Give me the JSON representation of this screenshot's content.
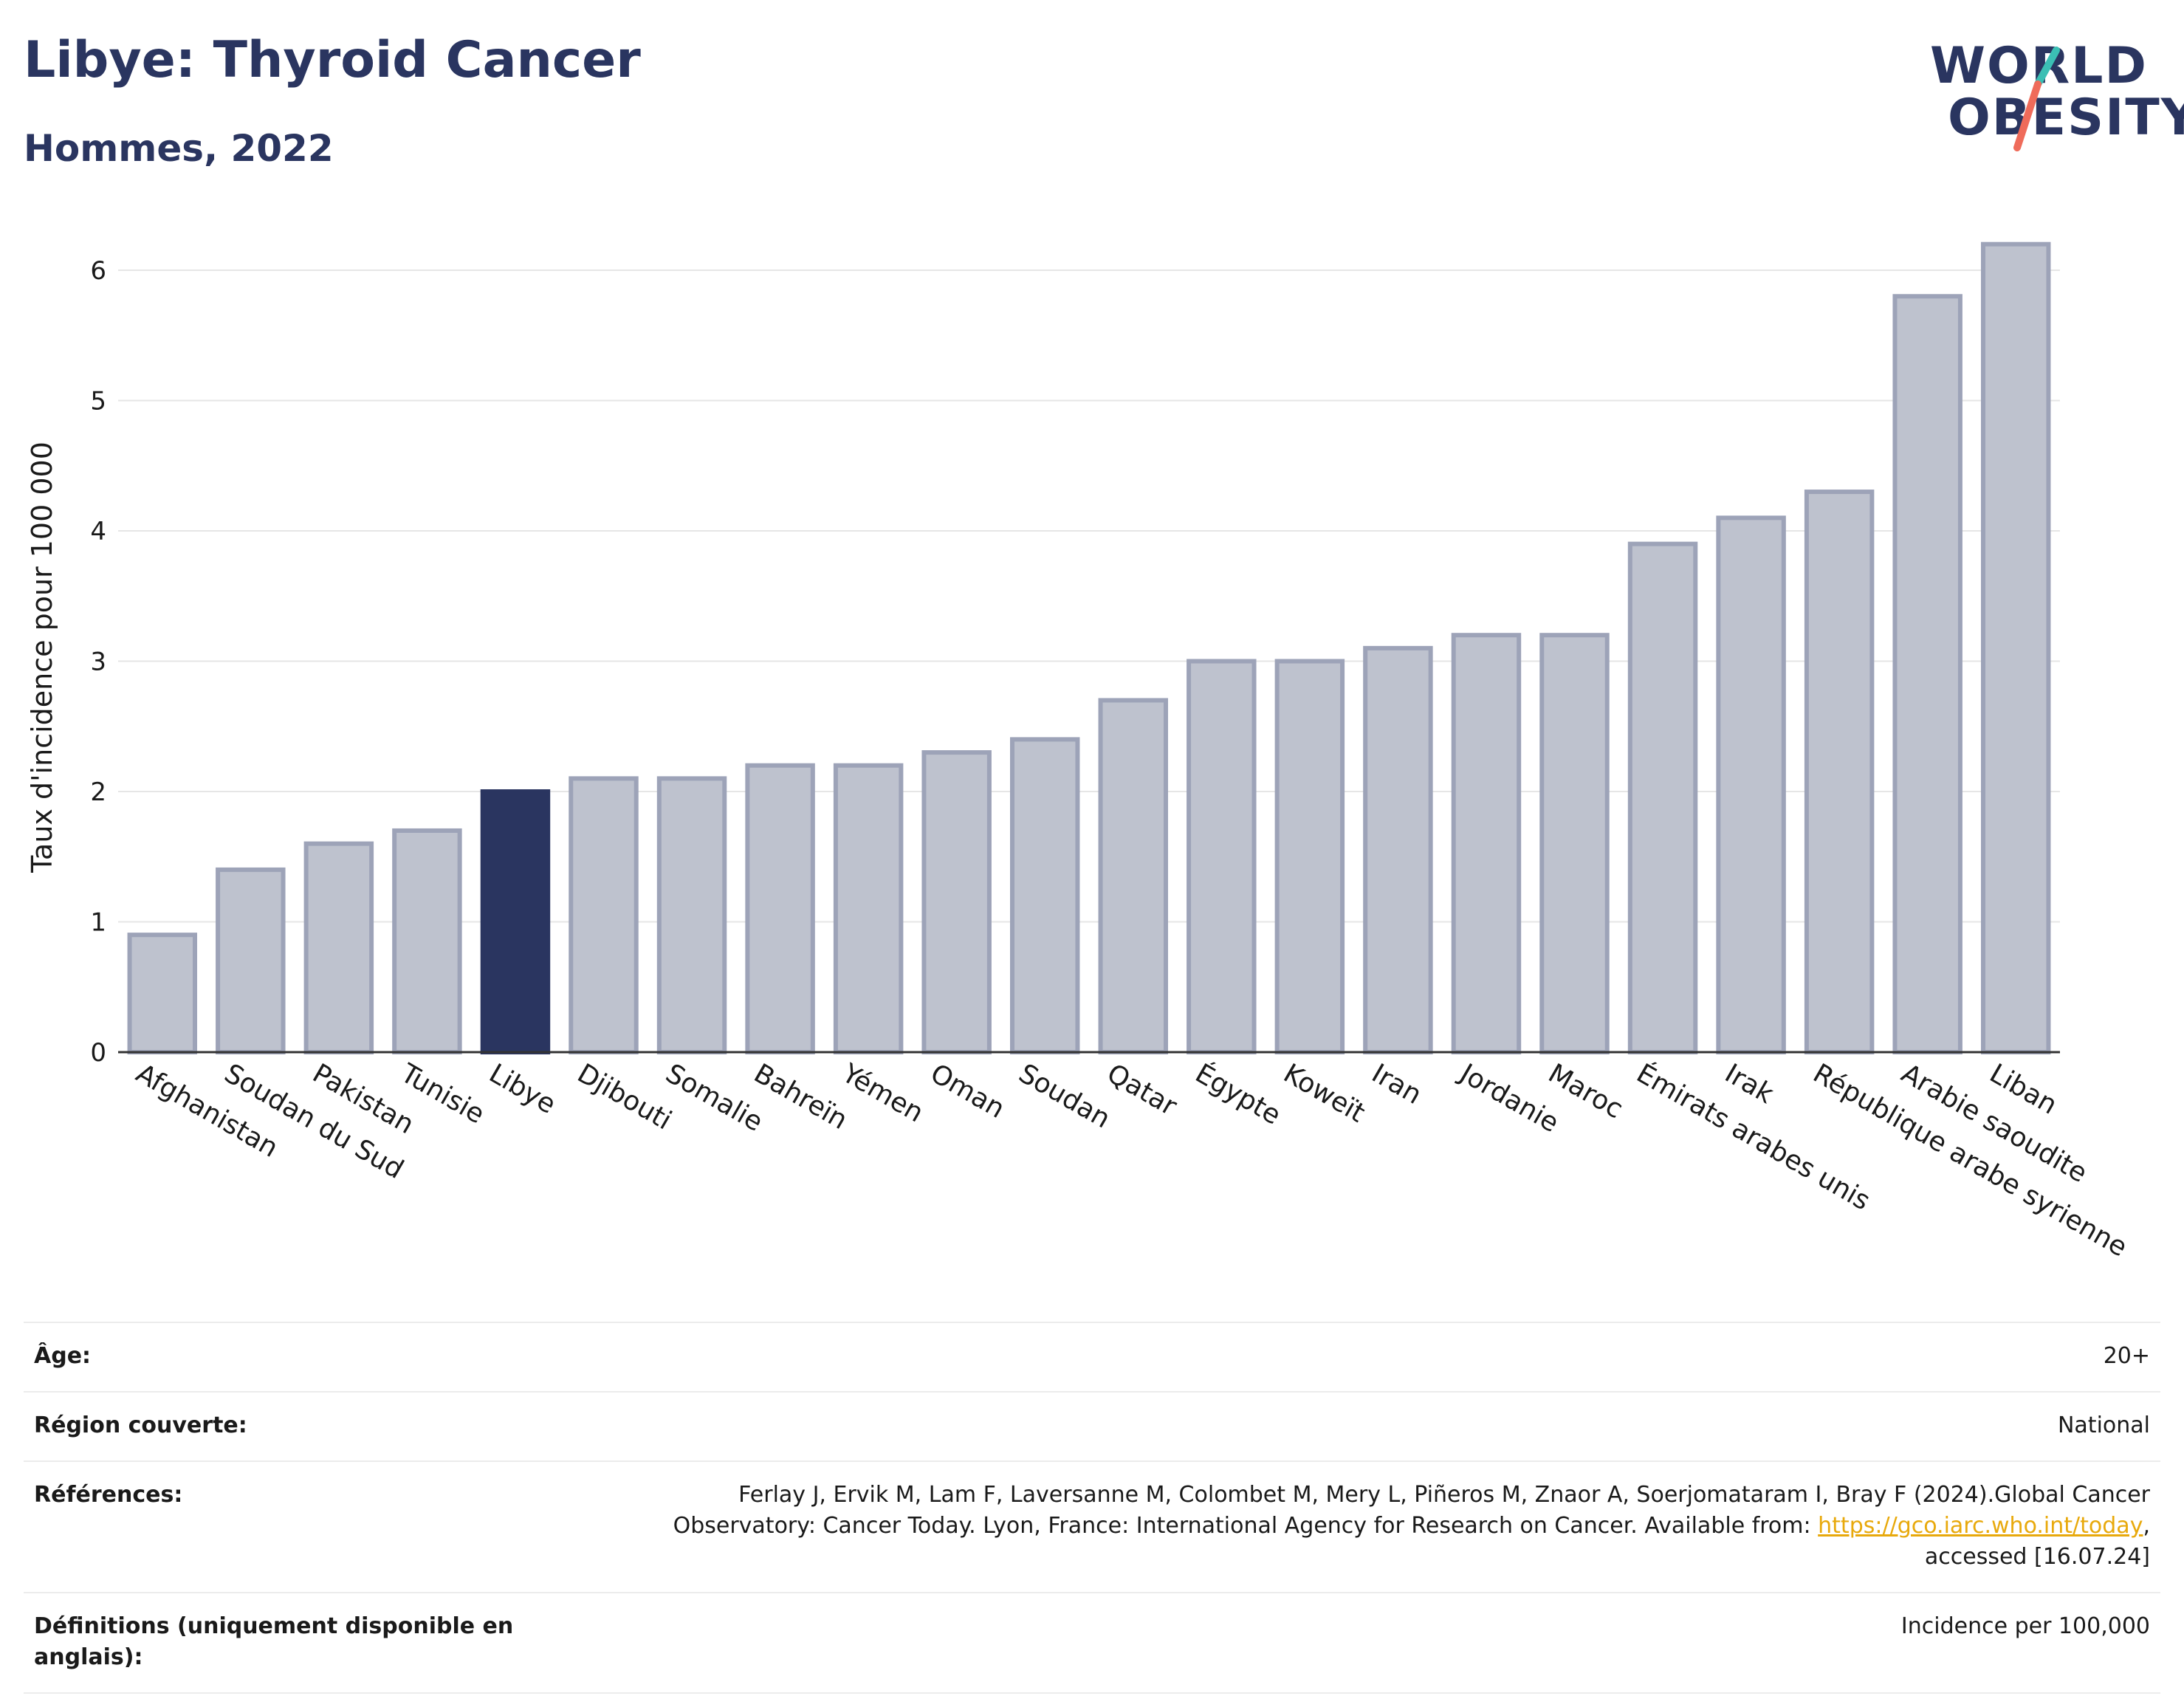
{
  "header": {
    "title": "Libye: Thyroid Cancer",
    "subtitle": "Hommes, 2022"
  },
  "logo": {
    "line1": "WORLD",
    "line2": "OBESITY",
    "colors": {
      "text": "#2a3560",
      "slash_top": "#3bbfb4",
      "slash_bottom": "#ef6b5a"
    }
  },
  "colors": {
    "highlight_bar": "#2a3560",
    "other_bar": "#bec2ce",
    "other_bar_border": "#9da3b8",
    "grid": "#e6e6e6",
    "link": "#e8a90c"
  },
  "chart_data": {
    "type": "bar",
    "ylabel": "Taux d'incidence pour 100 000",
    "xlabel": "",
    "ylim": [
      0,
      6.4
    ],
    "yticks": [
      0,
      1,
      2,
      3,
      4,
      5,
      6
    ],
    "grid": true,
    "highlight": "Libye",
    "categories": [
      "Afghanistan",
      "Soudan du Sud",
      "Pakistan",
      "Tunisie",
      "Libye",
      "Djibouti",
      "Somalie",
      "Bahreïn",
      "Yémen",
      "Oman",
      "Soudan",
      "Qatar",
      "Égypte",
      "Koweït",
      "Iran",
      "Jordanie",
      "Maroc",
      "Émirats arabes unis",
      "Irak",
      "République arabe syrienne",
      "Arabie saoudite",
      "Liban"
    ],
    "values": [
      0.9,
      1.4,
      1.6,
      1.7,
      2.0,
      2.1,
      2.1,
      2.2,
      2.2,
      2.3,
      2.4,
      2.7,
      3.0,
      3.0,
      3.1,
      3.2,
      3.2,
      3.9,
      4.1,
      4.3,
      5.8,
      6.2
    ]
  },
  "metadata": {
    "age_label": "Âge:",
    "age_value": "20+",
    "region_label": "Région couverte:",
    "region_value": "National",
    "references_label": "Références:",
    "references_text_before": "Ferlay J, Ervik M, Lam F, Laversanne M, Colombet M, Mery L, Piñeros M, Znaor A, Soerjomataram I, Bray F (2024).Global Cancer Observatory: Cancer Today. Lyon, France: International Agency for Research on Cancer. Available from: ",
    "references_link": "https://gco.iarc.who.int/today",
    "references_text_after": ", accessed [16.07.24]",
    "definitions_label": "Définitions (uniquement disponible en anglais):",
    "definitions_value": "Incidence per 100,000"
  }
}
